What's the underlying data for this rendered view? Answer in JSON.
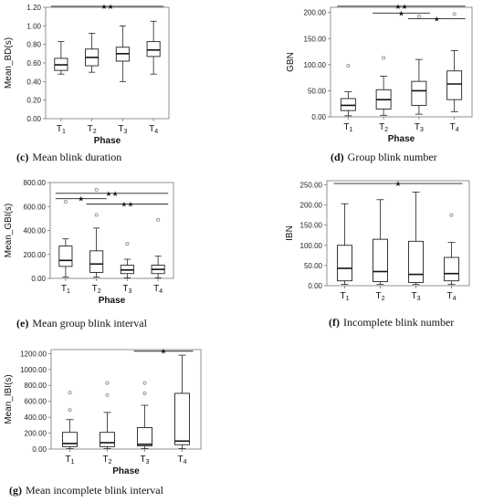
{
  "chart_data": [
    {
      "type": "box",
      "caption_letter": "(c)",
      "caption_text": "Mean blink duration",
      "ylabel": "Mean_BD(s)",
      "xlabel": "Phase",
      "categories": [
        "T1",
        "T2",
        "T3",
        "T4"
      ],
      "ylim": [
        0,
        1.2
      ],
      "yticks": [
        0,
        0.2,
        0.4,
        0.6,
        0.8,
        1.0,
        1.2
      ],
      "ytick_labels": [
        "0.00",
        "0.20",
        "0.40",
        "0.60",
        "0.80",
        "1.00",
        "1.20"
      ],
      "boxes": [
        {
          "min": 0.48,
          "q1": 0.52,
          "median": 0.58,
          "q3": 0.65,
          "max": 0.83,
          "outliers": []
        },
        {
          "min": 0.5,
          "q1": 0.57,
          "median": 0.66,
          "q3": 0.75,
          "max": 0.92,
          "outliers": []
        },
        {
          "min": 0.4,
          "q1": 0.62,
          "median": 0.7,
          "q3": 0.77,
          "max": 1.0,
          "outliers": []
        },
        {
          "min": 0.48,
          "q1": 0.67,
          "median": 0.74,
          "q3": 0.83,
          "max": 1.05,
          "outliers": []
        }
      ],
      "significance": [
        {
          "from": 0,
          "to": 3,
          "y": 1.21,
          "label": "★★"
        }
      ]
    },
    {
      "type": "box",
      "caption_letter": "(d)",
      "caption_text": "Group blink number",
      "ylabel": "GBN",
      "xlabel": "Phase",
      "categories": [
        "T1",
        "T2",
        "T3",
        "T4"
      ],
      "ylim": [
        0,
        210
      ],
      "yticks": [
        0,
        50,
        100,
        150,
        200
      ],
      "ytick_labels": [
        "0.00",
        "50.00",
        "100.00",
        "150.00",
        "200.00"
      ],
      "boxes": [
        {
          "min": 2,
          "q1": 12,
          "median": 22,
          "q3": 35,
          "max": 48,
          "outliers": [
            98
          ]
        },
        {
          "min": 3,
          "q1": 15,
          "median": 33,
          "q3": 52,
          "max": 78,
          "outliers": [
            113
          ]
        },
        {
          "min": 5,
          "q1": 22,
          "median": 50,
          "q3": 68,
          "max": 110,
          "outliers": [
            193
          ]
        },
        {
          "min": 10,
          "q1": 33,
          "median": 63,
          "q3": 88,
          "max": 127,
          "outliers": [
            197
          ]
        }
      ],
      "significance": [
        {
          "from": 0,
          "to": 3,
          "y": 212,
          "label": "★★"
        },
        {
          "from": 1,
          "to": 2,
          "y": 199,
          "label": "★"
        },
        {
          "from": 2,
          "to": 3,
          "y": 188,
          "label": "★"
        }
      ]
    },
    {
      "type": "box",
      "caption_letter": "(e)",
      "caption_text": "Mean group blink interval",
      "ylabel": "Mean_GBI(s)",
      "xlabel": "Phase",
      "categories": [
        "T1",
        "T2",
        "T3",
        "T4"
      ],
      "ylim": [
        0,
        800
      ],
      "yticks": [
        0,
        200,
        400,
        600,
        800
      ],
      "ytick_labels": [
        "0.00",
        "200.00",
        "400.00",
        "600.00",
        "800.00"
      ],
      "boxes": [
        {
          "min": 10,
          "q1": 100,
          "median": 150,
          "q3": 270,
          "max": 330,
          "outliers": [
            640
          ]
        },
        {
          "min": 10,
          "q1": 50,
          "median": 120,
          "q3": 230,
          "max": 420,
          "outliers": [
            530,
            740
          ]
        },
        {
          "min": 5,
          "q1": 40,
          "median": 70,
          "q3": 110,
          "max": 160,
          "outliers": [
            290
          ]
        },
        {
          "min": 5,
          "q1": 40,
          "median": 75,
          "q3": 110,
          "max": 185,
          "outliers": [
            490
          ]
        }
      ],
      "significance": [
        {
          "from": 0,
          "to": 3,
          "y": 710,
          "label": "★★"
        },
        {
          "from": 0,
          "to": 1,
          "y": 665,
          "label": "★"
        },
        {
          "from": 1,
          "to": 3,
          "y": 620,
          "label": "★★"
        }
      ]
    },
    {
      "type": "box",
      "caption_letter": "(f)",
      "caption_text": "Incomplete blink number",
      "ylabel": "IBN",
      "xlabel": "",
      "categories": [
        "T1",
        "T2",
        "T3",
        "T4"
      ],
      "ylim": [
        0,
        260
      ],
      "yticks": [
        0,
        50,
        100,
        150,
        200,
        250
      ],
      "ytick_labels": [
        "0.00",
        "50.00",
        "100.00",
        "150.00",
        "200.00",
        "250.00"
      ],
      "boxes": [
        {
          "min": 3,
          "q1": 12,
          "median": 43,
          "q3": 100,
          "max": 203,
          "outliers": []
        },
        {
          "min": 3,
          "q1": 10,
          "median": 35,
          "q3": 115,
          "max": 213,
          "outliers": []
        },
        {
          "min": 3,
          "q1": 8,
          "median": 28,
          "q3": 110,
          "max": 232,
          "outliers": []
        },
        {
          "min": 3,
          "q1": 12,
          "median": 30,
          "q3": 70,
          "max": 107,
          "outliers": [
            175
          ]
        }
      ],
      "significance": [
        {
          "from": 0,
          "to": 3,
          "y": 253,
          "label": "★"
        }
      ]
    },
    {
      "type": "box",
      "caption_letter": "(g)",
      "caption_text": "Mean incomplete blink interval",
      "ylabel": "Mean_IBI(s)",
      "xlabel": "Phase",
      "categories": [
        "T1",
        "T2",
        "T3",
        "T4"
      ],
      "ylim": [
        0,
        1250
      ],
      "yticks": [
        0,
        200,
        400,
        600,
        800,
        1000,
        1200
      ],
      "ytick_labels": [
        "0.00",
        "200.00",
        "400.00",
        "600.00",
        "800.00",
        "1000.00",
        "1200.00"
      ],
      "boxes": [
        {
          "min": 5,
          "q1": 30,
          "median": 70,
          "q3": 210,
          "max": 370,
          "outliers": [
            490,
            710
          ]
        },
        {
          "min": 5,
          "q1": 30,
          "median": 80,
          "q3": 210,
          "max": 460,
          "outliers": [
            680,
            830
          ]
        },
        {
          "min": 5,
          "q1": 40,
          "median": 60,
          "q3": 270,
          "max": 550,
          "outliers": [
            700,
            830
          ]
        },
        {
          "min": 5,
          "q1": 55,
          "median": 100,
          "q3": 700,
          "max": 1180,
          "outliers": []
        }
      ],
      "significance": [
        {
          "from": 2,
          "to": 3,
          "y": 1230,
          "label": "★"
        }
      ]
    }
  ]
}
